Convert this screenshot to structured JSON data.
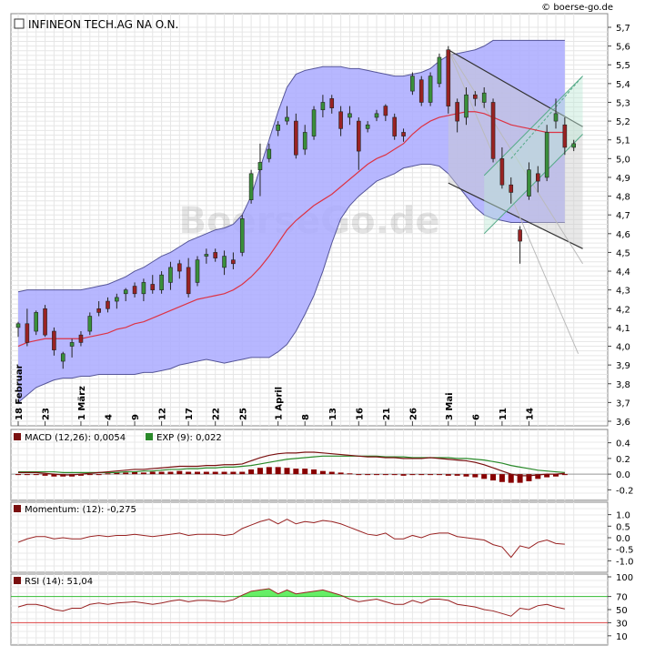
{
  "watermark": "BoerseGo.de",
  "source": "© boerse-go.de",
  "colors": {
    "band_fill": "#aaaaff",
    "band_line": "#555599",
    "ma_line": "#dd3344",
    "candle_up": "#3a8f3a",
    "candle_down": "#992222",
    "macd_line": "#7a1010",
    "signal_line": "#2a8a2a",
    "hist": "#880000",
    "momentum_line": "#992222",
    "rsi_line": "#992222",
    "rsi_over": "#66ee66",
    "channel_down": "#333333",
    "channel_up": "#55aa88"
  },
  "chart_data": [
    {
      "type": "candlestick",
      "title": "INFINEON TECH.AG NA O.N.",
      "ylim": [
        3.6,
        5.7
      ],
      "y_ticks": [
        "3,6",
        "3,7",
        "3,8",
        "3,9",
        "4,0",
        "4,1",
        "4,2",
        "4,3",
        "4,4",
        "4,5",
        "4,6",
        "4,7",
        "4,8",
        "4,9",
        "5,0",
        "5,1",
        "5,2",
        "5,3",
        "5,4",
        "5,5",
        "5,6",
        "5,7"
      ],
      "x_labels": [
        {
          "label": "18 Februar",
          "day": 0
        },
        {
          "label": "23",
          "day": 3
        },
        {
          "label": "1 März",
          "day": 7
        },
        {
          "label": "4",
          "day": 10
        },
        {
          "label": "9",
          "day": 13
        },
        {
          "label": "12",
          "day": 16
        },
        {
          "label": "17",
          "day": 19
        },
        {
          "label": "22",
          "day": 22
        },
        {
          "label": "25",
          "day": 25
        },
        {
          "label": "1 April",
          "day": 29
        },
        {
          "label": "8",
          "day": 32
        },
        {
          "label": "13",
          "day": 35
        },
        {
          "label": "16",
          "day": 38
        },
        {
          "label": "21",
          "day": 41
        },
        {
          "label": "26",
          "day": 44
        },
        {
          "label": "3 Mai",
          "day": 48
        },
        {
          "label": "6",
          "day": 51
        },
        {
          "label": "11",
          "day": 54
        },
        {
          "label": "14",
          "day": 57
        }
      ],
      "candles": [
        [
          4.1,
          4.13,
          4.05,
          4.12
        ],
        [
          4.12,
          4.2,
          4.0,
          4.02
        ],
        [
          4.08,
          4.19,
          4.06,
          4.18
        ],
        [
          4.2,
          4.22,
          4.05,
          4.06
        ],
        [
          4.08,
          4.1,
          3.95,
          3.98
        ],
        [
          3.92,
          3.97,
          3.88,
          3.96
        ],
        [
          4.0,
          4.04,
          3.94,
          4.02
        ],
        [
          4.06,
          4.08,
          4.0,
          4.02
        ],
        [
          4.08,
          4.18,
          4.06,
          4.16
        ],
        [
          4.2,
          4.24,
          4.16,
          4.18
        ],
        [
          4.24,
          4.26,
          4.18,
          4.2
        ],
        [
          4.24,
          4.28,
          4.2,
          4.26
        ],
        [
          4.28,
          4.31,
          4.24,
          4.3
        ],
        [
          4.32,
          4.34,
          4.26,
          4.28
        ],
        [
          4.28,
          4.36,
          4.24,
          4.34
        ],
        [
          4.33,
          4.38,
          4.28,
          4.3
        ],
        [
          4.3,
          4.4,
          4.28,
          4.38
        ],
        [
          4.34,
          4.45,
          4.3,
          4.42
        ],
        [
          4.44,
          4.46,
          4.36,
          4.4
        ],
        [
          4.42,
          4.47,
          4.26,
          4.28
        ],
        [
          4.34,
          4.48,
          4.32,
          4.46
        ],
        [
          4.48,
          4.52,
          4.44,
          4.49
        ],
        [
          4.5,
          4.52,
          4.45,
          4.47
        ],
        [
          4.42,
          4.51,
          4.38,
          4.48
        ],
        [
          4.46,
          4.5,
          4.41,
          4.44
        ],
        [
          4.5,
          4.7,
          4.48,
          4.68
        ],
        [
          4.78,
          4.94,
          4.76,
          4.92
        ],
        [
          4.94,
          5.08,
          4.8,
          4.98
        ],
        [
          5.0,
          5.08,
          4.98,
          5.05
        ],
        [
          5.15,
          5.2,
          5.12,
          5.18
        ],
        [
          5.2,
          5.28,
          5.18,
          5.22
        ],
        [
          5.2,
          5.24,
          5.0,
          5.02
        ],
        [
          5.05,
          5.18,
          5.02,
          5.14
        ],
        [
          5.12,
          5.28,
          5.1,
          5.26
        ],
        [
          5.26,
          5.34,
          5.22,
          5.3
        ],
        [
          5.32,
          5.34,
          5.24,
          5.27
        ],
        [
          5.25,
          5.28,
          5.12,
          5.16
        ],
        [
          5.22,
          5.28,
          5.18,
          5.24
        ],
        [
          5.2,
          5.22,
          4.94,
          5.04
        ],
        [
          5.16,
          5.2,
          5.14,
          5.18
        ],
        [
          5.22,
          5.26,
          5.2,
          5.24
        ],
        [
          5.28,
          5.29,
          5.2,
          5.23
        ],
        [
          5.22,
          5.24,
          5.1,
          5.12
        ],
        [
          5.14,
          5.16,
          5.09,
          5.12
        ],
        [
          5.36,
          5.46,
          5.34,
          5.44
        ],
        [
          5.42,
          5.44,
          5.28,
          5.3
        ],
        [
          5.3,
          5.46,
          5.28,
          5.44
        ],
        [
          5.4,
          5.56,
          5.38,
          5.54
        ],
        [
          5.58,
          5.6,
          5.24,
          5.28
        ],
        [
          5.3,
          5.32,
          5.14,
          5.2
        ],
        [
          5.22,
          5.38,
          5.18,
          5.34
        ],
        [
          5.34,
          5.36,
          5.28,
          5.32
        ],
        [
          5.3,
          5.38,
          5.27,
          5.35
        ],
        [
          5.3,
          5.32,
          4.98,
          5.0
        ],
        [
          5.0,
          5.06,
          4.84,
          4.86
        ],
        [
          4.86,
          4.9,
          4.76,
          4.82
        ],
        [
          4.62,
          4.64,
          4.44,
          4.56
        ],
        [
          4.8,
          4.98,
          4.78,
          4.94
        ],
        [
          4.92,
          4.96,
          4.82,
          4.88
        ],
        [
          4.9,
          5.18,
          4.88,
          5.14
        ],
        [
          5.2,
          5.32,
          5.16,
          5.24
        ],
        [
          5.18,
          5.22,
          5.02,
          5.06
        ],
        [
          5.06,
          5.1,
          5.04,
          5.08
        ]
      ],
      "ma": [
        4.0,
        4.02,
        4.03,
        4.04,
        4.04,
        4.04,
        4.04,
        4.04,
        4.05,
        4.06,
        4.07,
        4.09,
        4.1,
        4.12,
        4.13,
        4.15,
        4.17,
        4.19,
        4.21,
        4.23,
        4.25,
        4.26,
        4.27,
        4.28,
        4.3,
        4.33,
        4.37,
        4.42,
        4.48,
        4.55,
        4.62,
        4.67,
        4.71,
        4.75,
        4.78,
        4.81,
        4.85,
        4.89,
        4.93,
        4.97,
        5.0,
        5.02,
        5.05,
        5.08,
        5.13,
        5.17,
        5.2,
        5.22,
        5.23,
        5.24,
        5.25,
        5.25,
        5.24,
        5.22,
        5.2,
        5.18,
        5.17,
        5.16,
        5.15,
        5.14,
        5.14,
        5.14
      ],
      "band_upper": [
        4.29,
        4.3,
        4.3,
        4.3,
        4.3,
        4.3,
        4.3,
        4.3,
        4.31,
        4.32,
        4.33,
        4.35,
        4.37,
        4.4,
        4.42,
        4.45,
        4.48,
        4.5,
        4.53,
        4.56,
        4.58,
        4.6,
        4.62,
        4.63,
        4.65,
        4.7,
        4.8,
        4.95,
        5.1,
        5.25,
        5.38,
        5.45,
        5.47,
        5.48,
        5.49,
        5.49,
        5.49,
        5.48,
        5.48,
        5.47,
        5.46,
        5.45,
        5.44,
        5.44,
        5.45,
        5.46,
        5.48,
        5.52,
        5.55,
        5.56,
        5.57,
        5.58,
        5.6,
        5.63,
        5.63,
        5.63,
        5.63,
        5.63,
        5.63,
        5.63,
        5.63,
        5.63
      ],
      "band_lower": [
        3.7,
        3.74,
        3.78,
        3.8,
        3.82,
        3.83,
        3.83,
        3.84,
        3.84,
        3.85,
        3.85,
        3.85,
        3.85,
        3.85,
        3.86,
        3.86,
        3.87,
        3.88,
        3.9,
        3.91,
        3.92,
        3.93,
        3.92,
        3.91,
        3.92,
        3.93,
        3.94,
        3.94,
        3.94,
        3.97,
        4.01,
        4.08,
        4.17,
        4.27,
        4.4,
        4.55,
        4.68,
        4.75,
        4.8,
        4.84,
        4.88,
        4.9,
        4.92,
        4.95,
        4.96,
        4.97,
        4.97,
        4.96,
        4.92,
        4.86,
        4.8,
        4.74,
        4.7,
        4.68,
        4.67,
        4.66,
        4.66,
        4.66,
        4.66,
        4.66,
        4.66,
        4.66
      ]
    },
    {
      "type": "line",
      "name": "MACD",
      "label": "MACD (12,26): 0,0054",
      "signal_label": "EXP (9): 0,022",
      "ylim": [
        -0.3,
        0.5
      ],
      "y_ticks": [
        "0.4",
        "0.2",
        "0.0",
        "-0.2"
      ],
      "macd": [
        0.02,
        0.02,
        0.02,
        0.01,
        0.0,
        -0.01,
        -0.01,
        0.0,
        0.01,
        0.02,
        0.03,
        0.04,
        0.05,
        0.06,
        0.06,
        0.07,
        0.08,
        0.09,
        0.1,
        0.1,
        0.1,
        0.11,
        0.11,
        0.12,
        0.12,
        0.13,
        0.17,
        0.21,
        0.24,
        0.26,
        0.27,
        0.27,
        0.28,
        0.28,
        0.27,
        0.26,
        0.25,
        0.24,
        0.23,
        0.22,
        0.22,
        0.21,
        0.21,
        0.2,
        0.2,
        0.2,
        0.21,
        0.2,
        0.19,
        0.18,
        0.17,
        0.15,
        0.12,
        0.08,
        0.04,
        0.0,
        -0.02,
        -0.02,
        -0.01,
        0.0,
        0.0,
        0.01
      ],
      "signal": [
        0.03,
        0.03,
        0.03,
        0.03,
        0.03,
        0.02,
        0.02,
        0.02,
        0.02,
        0.02,
        0.02,
        0.02,
        0.03,
        0.03,
        0.04,
        0.04,
        0.05,
        0.06,
        0.06,
        0.07,
        0.07,
        0.08,
        0.08,
        0.09,
        0.09,
        0.1,
        0.11,
        0.13,
        0.15,
        0.17,
        0.19,
        0.2,
        0.21,
        0.22,
        0.23,
        0.23,
        0.23,
        0.23,
        0.23,
        0.23,
        0.23,
        0.22,
        0.22,
        0.22,
        0.21,
        0.21,
        0.21,
        0.21,
        0.21,
        0.2,
        0.2,
        0.19,
        0.18,
        0.16,
        0.14,
        0.11,
        0.09,
        0.07,
        0.05,
        0.04,
        0.03,
        0.02
      ]
    },
    {
      "type": "line",
      "name": "Momentum",
      "label": "Momentum: (12): -0,275",
      "ylim": [
        -1.3,
        1.3
      ],
      "y_ticks": [
        "1.0",
        "0.5",
        "0.0",
        "-0.5",
        "-1.0"
      ],
      "values": [
        -0.2,
        -0.05,
        0.05,
        0.05,
        -0.05,
        0.0,
        -0.05,
        -0.05,
        0.05,
        0.1,
        0.05,
        0.1,
        0.1,
        0.15,
        0.1,
        0.05,
        0.1,
        0.15,
        0.2,
        0.1,
        0.15,
        0.15,
        0.15,
        0.1,
        0.15,
        0.4,
        0.55,
        0.7,
        0.8,
        0.6,
        0.8,
        0.6,
        0.7,
        0.65,
        0.75,
        0.7,
        0.6,
        0.45,
        0.3,
        0.15,
        0.1,
        0.2,
        -0.05,
        -0.05,
        0.1,
        0.0,
        0.15,
        0.2,
        0.2,
        0.05,
        0.0,
        -0.05,
        -0.1,
        -0.3,
        -0.4,
        -0.85,
        -0.35,
        -0.45,
        -0.2,
        -0.1,
        -0.25,
        -0.28
      ]
    },
    {
      "type": "line",
      "name": "RSI",
      "label": "RSI (14): 51,04",
      "ylim": [
        0,
        100
      ],
      "y_ticks": [
        "100",
        "70",
        "50",
        "30",
        "10"
      ],
      "levels": [
        30,
        70
      ],
      "values": [
        54,
        58,
        58,
        55,
        50,
        48,
        52,
        52,
        58,
        60,
        58,
        60,
        61,
        62,
        60,
        58,
        60,
        63,
        65,
        62,
        64,
        64,
        63,
        62,
        65,
        72,
        78,
        80,
        82,
        74,
        80,
        74,
        76,
        78,
        80,
        76,
        72,
        66,
        62,
        64,
        66,
        62,
        58,
        58,
        64,
        60,
        66,
        66,
        64,
        58,
        56,
        54,
        50,
        48,
        44,
        40,
        52,
        50,
        56,
        58,
        54,
        51
      ]
    }
  ]
}
